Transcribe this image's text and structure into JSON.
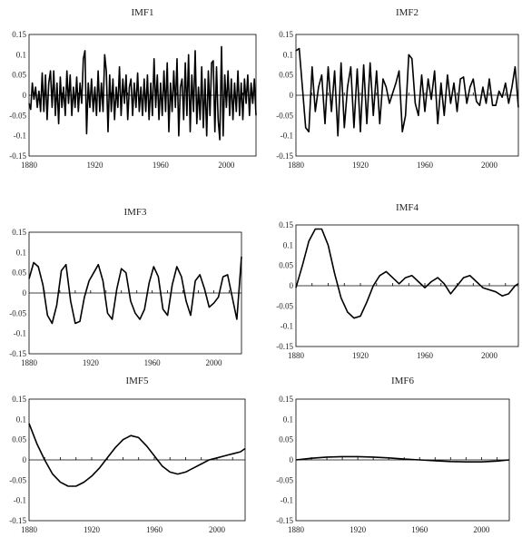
{
  "chart_data": [
    {
      "type": "line",
      "title": "IMF1",
      "xlim": [
        1880,
        2018
      ],
      "ylim": [
        -0.15,
        0.15
      ],
      "xticks": [
        "1880",
        "1920",
        "1960",
        "2000"
      ],
      "yticks": [
        "0.15",
        "0.1",
        "0.05",
        "0",
        "-0.05",
        "-0.1",
        "-0.15"
      ],
      "x": [
        1880,
        1881,
        1882,
        1883,
        1884,
        1885,
        1886,
        1887,
        1888,
        1889,
        1890,
        1891,
        1892,
        1893,
        1894,
        1895,
        1896,
        1897,
        1898,
        1899,
        1900,
        1901,
        1902,
        1903,
        1904,
        1905,
        1906,
        1907,
        1908,
        1909,
        1910,
        1911,
        1912,
        1913,
        1914,
        1915,
        1916,
        1917,
        1918,
        1919,
        1920,
        1921,
        1922,
        1923,
        1924,
        1925,
        1926,
        1927,
        1928,
        1929,
        1930,
        1931,
        1932,
        1933,
        1934,
        1935,
        1936,
        1937,
        1938,
        1939,
        1940,
        1941,
        1942,
        1943,
        1944,
        1945,
        1946,
        1947,
        1948,
        1949,
        1950,
        1951,
        1952,
        1953,
        1954,
        1955,
        1956,
        1957,
        1958,
        1959,
        1960,
        1961,
        1962,
        1963,
        1964,
        1965,
        1966,
        1967,
        1968,
        1969,
        1970,
        1971,
        1972,
        1973,
        1974,
        1975,
        1976,
        1977,
        1978,
        1979,
        1980,
        1981,
        1982,
        1983,
        1984,
        1985,
        1986,
        1987,
        1988,
        1989,
        1990,
        1991,
        1992,
        1993,
        1994,
        1995,
        1996,
        1997,
        1998,
        1999,
        2000,
        2001,
        2002,
        2003,
        2004,
        2005,
        2006,
        2007,
        2008,
        2009,
        2010,
        2011,
        2012,
        2013,
        2014,
        2015,
        2016,
        2017,
        2018
      ],
      "y": [
        -0.02,
        -0.035,
        0.03,
        -0.01,
        0.02,
        -0.03,
        0.01,
        -0.04,
        0.055,
        -0.04,
        0.05,
        -0.06,
        0.03,
        0.06,
        -0.03,
        0.06,
        -0.05,
        0.03,
        -0.07,
        0.045,
        -0.03,
        0.02,
        -0.05,
        0.06,
        -0.02,
        0.05,
        -0.05,
        0.02,
        -0.03,
        0.045,
        -0.04,
        0.03,
        -0.02,
        0.09,
        0.11,
        -0.095,
        0.03,
        -0.03,
        0.04,
        -0.04,
        0.02,
        -0.05,
        0.06,
        -0.04,
        0.03,
        -0.04,
        0.1,
        0.06,
        -0.09,
        0.05,
        -0.04,
        0.04,
        -0.06,
        0.02,
        -0.03,
        0.07,
        -0.05,
        0.04,
        -0.02,
        0.05,
        -0.06,
        0.02,
        0.04,
        -0.05,
        0.03,
        -0.03,
        0.055,
        -0.04,
        0.02,
        -0.05,
        0.04,
        -0.04,
        0.05,
        -0.06,
        0.03,
        -0.05,
        0.09,
        -0.03,
        0.05,
        -0.06,
        0.03,
        -0.05,
        0.06,
        -0.04,
        0.08,
        -0.09,
        0.03,
        -0.04,
        0.06,
        -0.03,
        0.09,
        -0.1,
        0.02,
        0.04,
        -0.06,
        0.08,
        -0.05,
        0.1,
        -0.09,
        0.05,
        -0.04,
        0.11,
        -0.07,
        0.02,
        -0.06,
        0.07,
        -0.08,
        0.04,
        -0.1,
        0.06,
        -0.05,
        0.08,
        0.085,
        -0.09,
        0.07,
        -0.06,
        -0.11,
        0.12,
        -0.1,
        0.05,
        -0.03,
        0.06,
        -0.05,
        0.04,
        -0.06,
        0.03,
        -0.04,
        0.06,
        -0.05,
        0.03,
        -0.06,
        0.04,
        -0.02,
        0.05,
        -0.05,
        0.03,
        -0.02,
        0.04,
        -0.05
      ]
    },
    {
      "type": "line",
      "title": "IMF2",
      "xlim": [
        1880,
        2018
      ],
      "ylim": [
        -0.15,
        0.15
      ],
      "xticks": [
        "1880",
        "1920",
        "1960",
        "2000"
      ],
      "yticks": [
        "0.15",
        "0.1",
        "0.05",
        "0",
        "-0.05",
        "-0.1",
        "-0.15"
      ],
      "x": [
        1880,
        1882,
        1884,
        1886,
        1888,
        1890,
        1892,
        1894,
        1896,
        1898,
        1900,
        1902,
        1904,
        1906,
        1908,
        1910,
        1912,
        1914,
        1916,
        1918,
        1920,
        1922,
        1924,
        1926,
        1928,
        1930,
        1932,
        1934,
        1936,
        1938,
        1940,
        1942,
        1944,
        1946,
        1948,
        1950,
        1952,
        1954,
        1956,
        1958,
        1960,
        1962,
        1964,
        1966,
        1968,
        1970,
        1972,
        1974,
        1976,
        1978,
        1980,
        1982,
        1984,
        1986,
        1988,
        1990,
        1992,
        1994,
        1996,
        1998,
        2000,
        2002,
        2004,
        2006,
        2008,
        2010,
        2012,
        2014,
        2016,
        2018
      ],
      "y": [
        0.11,
        0.115,
        0.02,
        -0.08,
        -0.09,
        0.07,
        -0.04,
        0.02,
        0.05,
        -0.07,
        0.07,
        -0.04,
        0.06,
        -0.1,
        0.08,
        -0.08,
        0.02,
        0.07,
        -0.08,
        0.065,
        -0.09,
        0.075,
        -0.07,
        0.08,
        -0.05,
        0.06,
        -0.07,
        0.04,
        0.02,
        -0.02,
        0.005,
        0.03,
        0.06,
        -0.09,
        -0.05,
        0.1,
        0.09,
        -0.02,
        -0.05,
        0.05,
        -0.04,
        0.04,
        -0.01,
        0.06,
        -0.07,
        0.03,
        -0.05,
        0.05,
        -0.02,
        0.03,
        -0.04,
        0.04,
        0.045,
        -0.02,
        0.02,
        0.04,
        -0.015,
        -0.025,
        0.02,
        -0.02,
        0.04,
        -0.025,
        -0.025,
        0.01,
        -0.005,
        0.03,
        -0.02,
        0.02,
        0.07,
        -0.03
      ]
    },
    {
      "type": "line",
      "title": "IMF3",
      "xlim": [
        1880,
        2018
      ],
      "ylim": [
        -0.15,
        0.15
      ],
      "xticks": [
        "1880",
        "1920",
        "1960",
        "2000"
      ],
      "yticks": [
        "0.15",
        "0.1",
        "0.05",
        "0",
        "-0.05",
        "-0.1",
        "-0.15"
      ],
      "x": [
        1880,
        1883,
        1886,
        1889,
        1892,
        1895,
        1898,
        1901,
        1904,
        1907,
        1910,
        1913,
        1916,
        1919,
        1922,
        1925,
        1928,
        1931,
        1934,
        1937,
        1940,
        1943,
        1946,
        1949,
        1952,
        1955,
        1958,
        1961,
        1964,
        1967,
        1970,
        1973,
        1976,
        1979,
        1982,
        1985,
        1988,
        1991,
        1994,
        1997,
        2000,
        2003,
        2006,
        2009,
        2012,
        2015,
        2018
      ],
      "y": [
        0.035,
        0.075,
        0.065,
        0.02,
        -0.055,
        -0.075,
        -0.03,
        0.055,
        0.07,
        -0.02,
        -0.075,
        -0.07,
        -0.01,
        0.03,
        0.05,
        0.07,
        0.03,
        -0.05,
        -0.065,
        0.01,
        0.06,
        0.05,
        -0.02,
        -0.05,
        -0.065,
        -0.04,
        0.025,
        0.065,
        0.04,
        -0.04,
        -0.055,
        0.02,
        0.065,
        0.04,
        -0.02,
        -0.055,
        0.03,
        0.045,
        0.01,
        -0.035,
        -0.025,
        -0.01,
        0.04,
        0.045,
        -0.01,
        -0.065,
        0.09
      ]
    },
    {
      "type": "line",
      "title": "IMF4",
      "xlim": [
        1880,
        2018
      ],
      "ylim": [
        -0.15,
        0.15
      ],
      "xticks": [
        "1880",
        "1920",
        "1960",
        "2000"
      ],
      "yticks": [
        "0.15",
        "0.1",
        "0.05",
        "0",
        "-0.05",
        "-0.1",
        "-0.15"
      ],
      "x": [
        1880,
        1884,
        1888,
        1892,
        1896,
        1900,
        1904,
        1908,
        1912,
        1916,
        1920,
        1924,
        1928,
        1932,
        1936,
        1940,
        1944,
        1948,
        1952,
        1956,
        1960,
        1964,
        1968,
        1972,
        1976,
        1980,
        1984,
        1988,
        1992,
        1996,
        2000,
        2004,
        2008,
        2012,
        2016,
        2018
      ],
      "y": [
        -0.005,
        0.05,
        0.11,
        0.14,
        0.14,
        0.1,
        0.03,
        -0.03,
        -0.065,
        -0.08,
        -0.075,
        -0.04,
        0.0,
        0.025,
        0.035,
        0.02,
        0.005,
        0.02,
        0.025,
        0.01,
        -0.005,
        0.01,
        0.02,
        0.005,
        -0.02,
        0.0,
        0.02,
        0.025,
        0.01,
        -0.005,
        -0.01,
        -0.015,
        -0.025,
        -0.02,
        0.0,
        0.005
      ]
    },
    {
      "type": "line",
      "title": "IMF5",
      "xlim": [
        1880,
        2018
      ],
      "ylim": [
        -0.15,
        0.15
      ],
      "xticks": [
        "1880",
        "1920",
        "1960",
        "2000"
      ],
      "yticks": [
        "0.15",
        "0.1",
        "0.05",
        "0",
        "-0.05",
        "-0.1",
        "-0.15"
      ],
      "x": [
        1880,
        1885,
        1890,
        1895,
        1900,
        1905,
        1910,
        1915,
        1920,
        1925,
        1930,
        1935,
        1940,
        1945,
        1950,
        1955,
        1960,
        1965,
        1970,
        1975,
        1980,
        1985,
        1990,
        1995,
        2000,
        2005,
        2010,
        2015,
        2018
      ],
      "y": [
        0.09,
        0.04,
        0.0,
        -0.035,
        -0.055,
        -0.065,
        -0.065,
        -0.055,
        -0.04,
        -0.02,
        0.005,
        0.03,
        0.05,
        0.06,
        0.055,
        0.035,
        0.01,
        -0.015,
        -0.03,
        -0.035,
        -0.03,
        -0.02,
        -0.01,
        0.0,
        0.005,
        0.01,
        0.015,
        0.02,
        0.028
      ]
    },
    {
      "type": "line",
      "title": "IMF6",
      "xlim": [
        1880,
        2018
      ],
      "ylim": [
        -0.15,
        0.15
      ],
      "xticks": [
        "1880",
        "1920",
        "1960",
        "2000"
      ],
      "yticks": [
        "0.15",
        "0.1",
        "0.05",
        "0",
        "-0.05",
        "-0.1",
        "-0.15"
      ],
      "x": [
        1880,
        1890,
        1900,
        1910,
        1920,
        1930,
        1940,
        1950,
        1960,
        1970,
        1980,
        1990,
        2000,
        2010,
        2018
      ],
      "y": [
        0.0,
        0.004,
        0.007,
        0.008,
        0.008,
        0.007,
        0.005,
        0.002,
        0.0,
        -0.002,
        -0.004,
        -0.005,
        -0.005,
        -0.003,
        0.0
      ]
    }
  ]
}
